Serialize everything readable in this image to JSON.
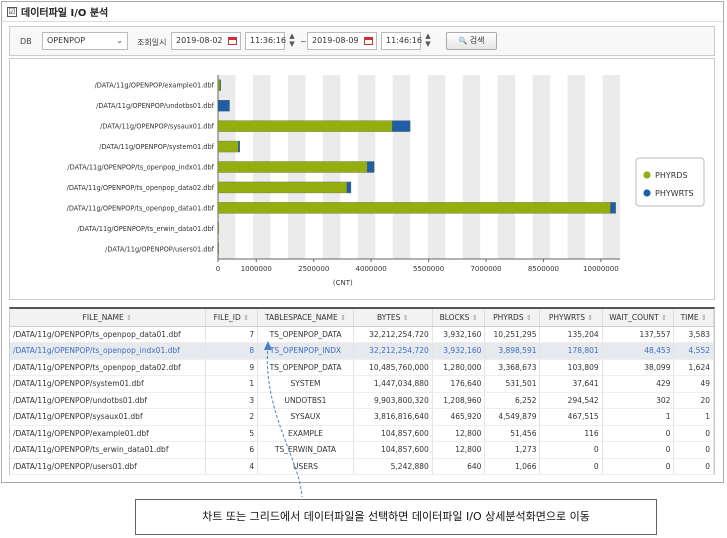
{
  "header": {
    "title": "데이터파일 I/O 분석",
    "check_glyph": "☑"
  },
  "filter": {
    "db_label": "DB",
    "db_value": "OPENPOP",
    "date_label": "조회일시",
    "start_date": "2019-08-02",
    "start_time": "11:36:16",
    "separator": "~",
    "end_date": "2019-08-09",
    "end_time": "11:46:16",
    "search_label": "검색",
    "search_icon": "magnifier-icon",
    "calendar_icon": "calendar-icon",
    "spinner_up": "▲",
    "spinner_down": "▼",
    "dropdown_glyph": "⌄",
    "search_glyph": "🔍"
  },
  "chart_data": {
    "type": "bar",
    "orientation": "horizontal",
    "stacked": true,
    "categories": [
      "/DATA/11g/OPENPOP/example01.dbf",
      "/DATA/11g/OPENPOP/undotbs01.dbf",
      "/DATA/11g/OPENPOP/sysaux01.dbf",
      "/DATA/11g/OPENPOP/system01.dbf",
      "/DATA/11g/OPENPOP/ts_openpop_indx01.dbf",
      "/DATA/11g/OPENPOP/ts_openpop_data02.dbf",
      "/DATA/11g/OPENPOP/ts_openpop_data01.dbf",
      "/DATA/11g/OPENPOP/ts_erwin_data01.dbf",
      "/DATA/11g/OPENPOP/users01.dbf"
    ],
    "series": [
      {
        "name": "PHYRDS",
        "color": "#94ae10",
        "values": [
          51456,
          6252,
          4549879,
          531501,
          3898591,
          3368673,
          10251295,
          1273,
          1066
        ]
      },
      {
        "name": "PHYWRTS",
        "color": "#1f5fa6",
        "values": [
          116,
          294542,
          467515,
          37641,
          178801,
          103809,
          135204,
          0,
          0
        ]
      }
    ],
    "xlabel": "(CNT)",
    "xticks": [
      0,
      1000000,
      2500000,
      4000000,
      5500000,
      7000000,
      8500000,
      10000000
    ],
    "xlim": [
      0,
      10500000
    ],
    "legend": "right",
    "band_colors": [
      "#ebebeb",
      "#ffffff"
    ]
  },
  "grid": {
    "sort_glyph": "⇕",
    "columns": [
      "FILE_NAME",
      "FILE_ID",
      "TABLESPACE_NAME",
      "BYTES",
      "BLOCKS",
      "PHYRDS",
      "PHYWRTS",
      "WAIT_COUNT",
      "TIME"
    ],
    "rows": [
      [
        "/DATA/11g/OPENPOP/ts_openpop_data01.dbf",
        "7",
        "TS_OPENPOP_DATA",
        "32,212,254,720",
        "3,932,160",
        "10,251,295",
        "135,204",
        "137,557",
        "3,583"
      ],
      [
        "/DATA/11g/OPENPOP/ts_openpop_indx01.dbf",
        "8",
        "TS_OPENPOP_INDX",
        "32,212,254,720",
        "3,932,160",
        "3,898,591",
        "178,801",
        "48,453",
        "4,552"
      ],
      [
        "/DATA/11g/OPENPOP/ts_openpop_data02.dbf",
        "9",
        "TS_OPENPOP_DATA",
        "10,485,760,000",
        "1,280,000",
        "3,368,673",
        "103,809",
        "38,099",
        "1,624"
      ],
      [
        "/DATA/11g/OPENPOP/system01.dbf",
        "1",
        "SYSTEM",
        "1,447,034,880",
        "176,640",
        "531,501",
        "37,641",
        "429",
        "49"
      ],
      [
        "/DATA/11g/OPENPOP/undotbs01.dbf",
        "3",
        "UNDOTBS1",
        "9,903,800,320",
        "1,208,960",
        "6,252",
        "294,542",
        "302",
        "20"
      ],
      [
        "/DATA/11g/OPENPOP/sysaux01.dbf",
        "2",
        "SYSAUX",
        "3,816,816,640",
        "465,920",
        "4,549,879",
        "467,515",
        "1",
        "1"
      ],
      [
        "/DATA/11g/OPENPOP/example01.dbf",
        "5",
        "EXAMPLE",
        "104,857,600",
        "12,800",
        "51,456",
        "116",
        "0",
        "0"
      ],
      [
        "/DATA/11g/OPENPOP/ts_erwin_data01.dbf",
        "6",
        "TS_ERWIN_DATA",
        "104,857,600",
        "12,800",
        "1,273",
        "0",
        "0",
        "0"
      ],
      [
        "/DATA/11g/OPENPOP/users01.dbf",
        "4",
        "USERS",
        "5,242,880",
        "640",
        "1,066",
        "0",
        "0",
        "0"
      ]
    ],
    "selected_row": 1
  },
  "callout": {
    "text": "차트 또는 그리드에서 데이터파일을 선택하면 데이터파일 I/O 상세분석화면으로 이동"
  }
}
